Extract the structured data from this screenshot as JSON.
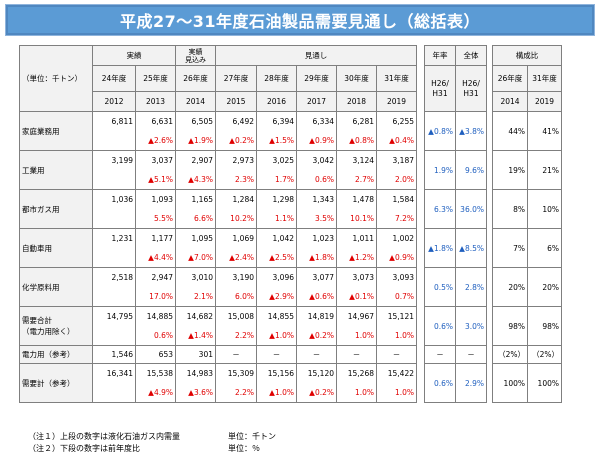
{
  "title": "平成27～31年度石油製品需要見通し（総括表）",
  "header": {
    "unit": "（単位：千トン）",
    "group_actual": "実績",
    "group_actual_est_line1": "実績",
    "group_actual_est_line2": "見込み",
    "group_forecast": "見通し",
    "group_annual": "年率",
    "group_total": "全体",
    "group_share": "構成比",
    "fy": [
      "24年度",
      "25年度",
      "26年度",
      "27年度",
      "28年度",
      "29年度",
      "30年度",
      "31年度"
    ],
    "years": [
      "2012",
      "2013",
      "2014",
      "2015",
      "2016",
      "2017",
      "2018",
      "2019"
    ],
    "rate_label_line1": "H26/",
    "rate_label_line2": "H31",
    "total_label_line1": "H26/",
    "total_label_line2": "H31",
    "share_fy": [
      "26年度",
      "31年度"
    ],
    "share_years": [
      "2014",
      "2019"
    ]
  },
  "rows": [
    {
      "label": "家庭業務用",
      "values": [
        "6,811",
        "6,631",
        "6,505",
        "6,492",
        "6,394",
        "6,334",
        "6,281",
        "6,255"
      ],
      "changes": [
        "",
        "▲2.6%",
        "▲1.9%",
        "▲0.2%",
        "▲1.5%",
        "▲0.9%",
        "▲0.8%",
        "▲0.4%"
      ],
      "annual": "▲0.8%",
      "total": "▲3.8%",
      "share26": "44%",
      "share31": "41%"
    },
    {
      "label": "工業用",
      "values": [
        "3,199",
        "3,037",
        "2,907",
        "2,973",
        "3,025",
        "3,042",
        "3,124",
        "3,187"
      ],
      "changes": [
        "",
        "▲5.1%",
        "▲4.3%",
        "2.3%",
        "1.7%",
        "0.6%",
        "2.7%",
        "2.0%"
      ],
      "annual": "1.9%",
      "total": "9.6%",
      "share26": "19%",
      "share31": "21%"
    },
    {
      "label": "都市ガス用",
      "values": [
        "1,036",
        "1,093",
        "1,165",
        "1,284",
        "1,298",
        "1,343",
        "1,478",
        "1,584"
      ],
      "changes": [
        "",
        "5.5%",
        "6.6%",
        "10.2%",
        "1.1%",
        "3.5%",
        "10.1%",
        "7.2%"
      ],
      "annual": "6.3%",
      "total": "36.0%",
      "share26": "8%",
      "share31": "10%"
    },
    {
      "label": "自動車用",
      "values": [
        "1,231",
        "1,177",
        "1,095",
        "1,069",
        "1,042",
        "1,023",
        "1,011",
        "1,002"
      ],
      "changes": [
        "",
        "▲4.4%",
        "▲7.0%",
        "▲2.4%",
        "▲2.5%",
        "▲1.8%",
        "▲1.2%",
        "▲0.9%"
      ],
      "annual": "▲1.8%",
      "total": "▲8.5%",
      "share26": "7%",
      "share31": "6%"
    },
    {
      "label": "化学原料用",
      "values": [
        "2,518",
        "2,947",
        "3,010",
        "3,190",
        "3,096",
        "3,077",
        "3,073",
        "3,093"
      ],
      "changes": [
        "",
        "17.0%",
        "2.1%",
        "6.0%",
        "▲2.9%",
        "▲0.6%",
        "▲0.1%",
        "0.7%"
      ],
      "annual": "0.5%",
      "total": "2.8%",
      "share26": "20%",
      "share31": "20%"
    },
    {
      "label_line1": "需要合計",
      "label_line2": "（電力用除く）",
      "values": [
        "14,795",
        "14,885",
        "14,682",
        "15,008",
        "14,855",
        "14,819",
        "14,967",
        "15,121"
      ],
      "changes": [
        "",
        "0.6%",
        "▲1.4%",
        "2.2%",
        "▲1.0%",
        "▲0.2%",
        "1.0%",
        "1.0%"
      ],
      "annual": "0.6%",
      "total": "3.0%",
      "share26": "98%",
      "share31": "98%"
    },
    {
      "label": "電力用（参考）",
      "values": [
        "1,546",
        "653",
        "301",
        "－",
        "－",
        "－",
        "－",
        "－"
      ],
      "annual": "－",
      "total": "－",
      "share26": "（2%）",
      "share31": "（2%）"
    },
    {
      "label": "需要計（参考）",
      "values": [
        "16,341",
        "15,538",
        "14,983",
        "15,309",
        "15,156",
        "15,120",
        "15,268",
        "15,422"
      ],
      "changes": [
        "",
        "▲4.9%",
        "▲3.6%",
        "2.2%",
        "▲1.0%",
        "▲0.2%",
        "1.0%",
        "1.0%"
      ],
      "annual": "0.6%",
      "total": "2.9%",
      "share26": "100%",
      "share31": "100%"
    }
  ],
  "notes": {
    "note1": "（注１）上段の数字は液化石油ガス内需量",
    "note2": "（注２）下段の数字は前年度比",
    "unit1": "単位：千トン",
    "unit2": "単位：％"
  },
  "colors": {
    "title_bg": "#5b9bd5",
    "negative": "#e00000",
    "annual_blue": "#1f5fbf"
  }
}
